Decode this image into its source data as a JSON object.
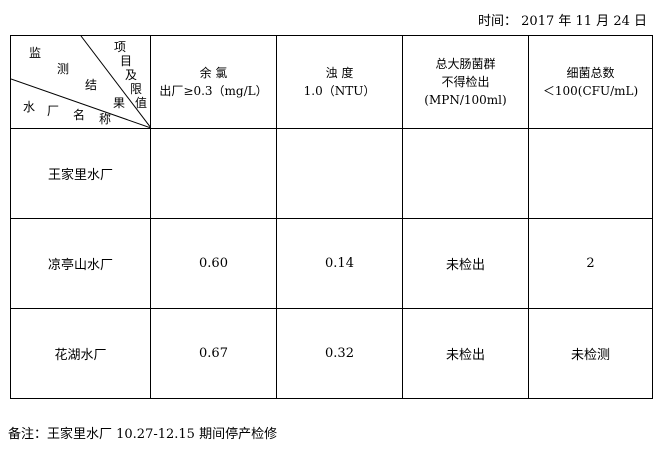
{
  "date": "时间： 2017 年 11 月 24 日",
  "corner": {
    "top_right": [
      "项",
      "目",
      "及",
      "限",
      "值"
    ],
    "middle": [
      "监",
      "测",
      "结",
      "果"
    ],
    "bottom": [
      "水",
      "厂",
      "名",
      "称"
    ]
  },
  "headers": [
    {
      "lines": [
        "余 氯",
        "出厂≥0.3（mg/L）"
      ]
    },
    {
      "lines": [
        "浊 度",
        "1.0（NTU）"
      ]
    },
    {
      "lines": [
        "总大肠菌群",
        "不得检出",
        "(MPN/100ml)"
      ]
    },
    {
      "lines": [
        "细菌总数",
        "＜100(CFU/mL)"
      ]
    }
  ],
  "rows": [
    {
      "name": "王家里水厂",
      "values": [
        "",
        "",
        "",
        ""
      ]
    },
    {
      "name": "凉亭山水厂",
      "values": [
        "0.60",
        "0.14",
        "未检出",
        "2"
      ]
    },
    {
      "name": "花湖水厂",
      "values": [
        "0.67",
        "0.32",
        "未检出",
        "未检测"
      ]
    }
  ],
  "note": "备注：王家里水厂 10.27-12.15 期间停产检修"
}
